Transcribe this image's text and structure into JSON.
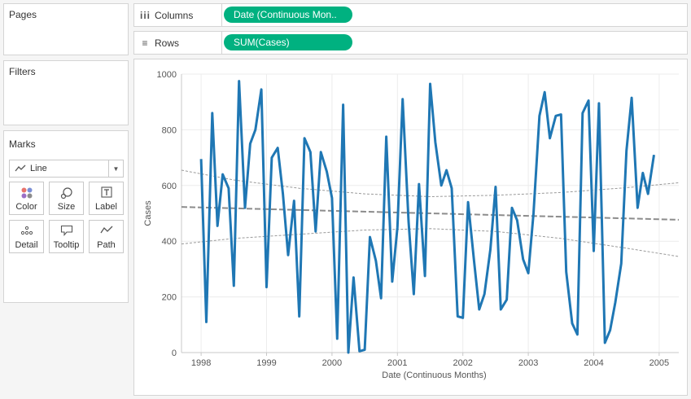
{
  "pages": {
    "title": "Pages"
  },
  "filters": {
    "title": "Filters"
  },
  "marks": {
    "title": "Marks",
    "mark_type": "Line",
    "buttons": [
      {
        "label": "Color",
        "icon": "color-icon"
      },
      {
        "label": "Size",
        "icon": "size-icon"
      },
      {
        "label": "Label",
        "icon": "label-icon"
      },
      {
        "label": "Detail",
        "icon": "detail-icon"
      },
      {
        "label": "Tooltip",
        "icon": "tooltip-icon"
      },
      {
        "label": "Path",
        "icon": "path-icon"
      }
    ]
  },
  "columns": {
    "label": "Columns",
    "pill": "Date (Continuous Mon.."
  },
  "rows": {
    "label": "Rows",
    "pill": "SUM(Cases)"
  },
  "colors": {
    "pill": "#00b180",
    "line": "#1f77b4",
    "trend": "#8c8c8c"
  },
  "chart_data": {
    "type": "line",
    "xlabel": "Date (Continuous Months)",
    "ylabel": "Cases",
    "xlim": [
      1997.7,
      2005.3
    ],
    "ylim": [
      0,
      1000
    ],
    "x_ticks": [
      "1998",
      "1999",
      "2000",
      "2001",
      "2002",
      "2003",
      "2004",
      "2005"
    ],
    "y_ticks": [
      "0",
      "200",
      "400",
      "600",
      "800",
      "1000"
    ],
    "grid": true,
    "series": [
      {
        "values": [
          [
            1998.0,
            695
          ],
          [
            1998.08,
            110
          ],
          [
            1998.17,
            860
          ],
          [
            1998.25,
            455
          ],
          [
            1998.33,
            640
          ],
          [
            1998.42,
            590
          ],
          [
            1998.5,
            240
          ],
          [
            1998.58,
            975
          ],
          [
            1998.67,
            520
          ],
          [
            1998.75,
            750
          ],
          [
            1998.83,
            800
          ],
          [
            1998.92,
            945
          ],
          [
            1999.0,
            235
          ],
          [
            1999.08,
            700
          ],
          [
            1999.17,
            735
          ],
          [
            1999.25,
            570
          ],
          [
            1999.33,
            350
          ],
          [
            1999.42,
            545
          ],
          [
            1999.5,
            130
          ],
          [
            1999.58,
            770
          ],
          [
            1999.67,
            720
          ],
          [
            1999.75,
            435
          ],
          [
            1999.83,
            720
          ],
          [
            1999.92,
            650
          ],
          [
            2000.0,
            555
          ],
          [
            2000.08,
            50
          ],
          [
            2000.17,
            890
          ],
          [
            2000.25,
            0
          ],
          [
            2000.33,
            270
          ],
          [
            2000.42,
            5
          ],
          [
            2000.5,
            10
          ],
          [
            2000.58,
            415
          ],
          [
            2000.67,
            330
          ],
          [
            2000.75,
            195
          ],
          [
            2000.83,
            775
          ],
          [
            2000.92,
            255
          ],
          [
            2001.0,
            450
          ],
          [
            2001.08,
            910
          ],
          [
            2001.17,
            470
          ],
          [
            2001.25,
            210
          ],
          [
            2001.33,
            605
          ],
          [
            2001.42,
            275
          ],
          [
            2001.5,
            965
          ],
          [
            2001.58,
            755
          ],
          [
            2001.67,
            600
          ],
          [
            2001.75,
            655
          ],
          [
            2001.83,
            590
          ],
          [
            2001.92,
            130
          ],
          [
            2002.0,
            125
          ],
          [
            2002.08,
            540
          ],
          [
            2002.17,
            330
          ],
          [
            2002.25,
            155
          ],
          [
            2002.33,
            210
          ],
          [
            2002.42,
            370
          ],
          [
            2002.5,
            595
          ],
          [
            2002.58,
            155
          ],
          [
            2002.67,
            190
          ],
          [
            2002.75,
            520
          ],
          [
            2002.83,
            475
          ],
          [
            2002.92,
            335
          ],
          [
            2003.0,
            285
          ],
          [
            2003.08,
            500
          ],
          [
            2003.17,
            850
          ],
          [
            2003.25,
            935
          ],
          [
            2003.33,
            770
          ],
          [
            2003.42,
            850
          ],
          [
            2003.5,
            855
          ],
          [
            2003.58,
            290
          ],
          [
            2003.67,
            105
          ],
          [
            2003.75,
            65
          ],
          [
            2003.83,
            860
          ],
          [
            2003.92,
            905
          ],
          [
            2004.0,
            365
          ],
          [
            2004.08,
            895
          ],
          [
            2004.17,
            35
          ],
          [
            2004.25,
            80
          ],
          [
            2004.33,
            180
          ],
          [
            2004.42,
            320
          ],
          [
            2004.5,
            725
          ],
          [
            2004.58,
            915
          ],
          [
            2004.67,
            520
          ],
          [
            2004.75,
            645
          ],
          [
            2004.83,
            570
          ],
          [
            2004.92,
            710
          ]
        ]
      }
    ],
    "trend_line": {
      "start": [
        1997.7,
        523
      ],
      "end": [
        2005.3,
        477
      ]
    },
    "confidence_upper": [
      [
        1997.7,
        655
      ],
      [
        1998.5,
        620
      ],
      [
        1999.5,
        590
      ],
      [
        2000.5,
        570
      ],
      [
        2001.5,
        560
      ],
      [
        2002.5,
        565
      ],
      [
        2003.5,
        575
      ],
      [
        2004.5,
        592
      ],
      [
        2005.3,
        610
      ]
    ],
    "confidence_lower": [
      [
        1997.7,
        390
      ],
      [
        1998.5,
        410
      ],
      [
        1999.5,
        425
      ],
      [
        2000.5,
        440
      ],
      [
        2001.5,
        445
      ],
      [
        2002.5,
        435
      ],
      [
        2003.5,
        410
      ],
      [
        2004.5,
        375
      ],
      [
        2005.3,
        345
      ]
    ]
  }
}
